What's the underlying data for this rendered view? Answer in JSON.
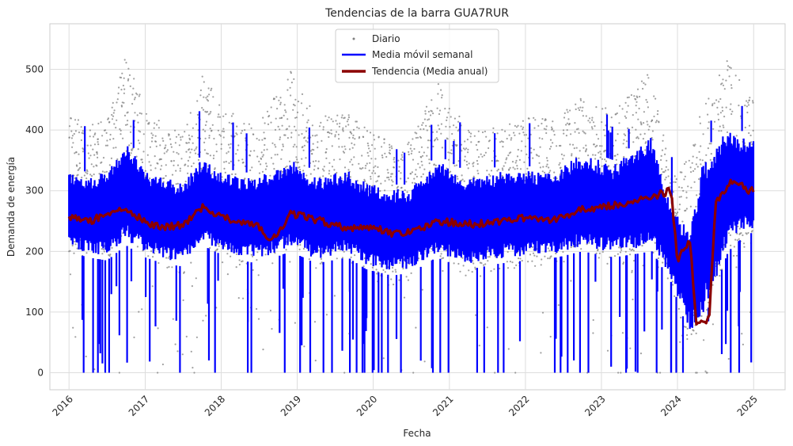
{
  "chart_data": {
    "type": "line",
    "title": "Tendencias de la barra GUA7RUR",
    "xlabel": "Fecha",
    "ylabel": "Demanda de energía",
    "x_ticks": [
      "2016",
      "2017",
      "2018",
      "2019",
      "2020",
      "2021",
      "2022",
      "2023",
      "2024",
      "2025"
    ],
    "y_ticks": [
      0,
      100,
      200,
      300,
      400,
      500
    ],
    "xlim": [
      "2015-10-01",
      "2025-06-01"
    ],
    "ylim": [
      -28,
      575
    ],
    "grid": true,
    "legend_position": "top-center",
    "series": [
      {
        "name": "Diario",
        "style": "points",
        "color": "#808080",
        "points": [
          [
            "2016-01",
            200,
            430
          ],
          [
            "2016-04",
            180,
            410
          ],
          [
            "2016-07",
            170,
            420
          ],
          [
            "2016-10",
            230,
            530
          ],
          [
            "2017-01",
            190,
            430
          ],
          [
            "2017-04",
            170,
            410
          ],
          [
            "2017-07",
            160,
            400
          ],
          [
            "2017-10",
            220,
            500
          ],
          [
            "2018-01",
            180,
            440
          ],
          [
            "2018-04",
            170,
            420
          ],
          [
            "2018-07",
            160,
            410
          ],
          [
            "2018-12",
            220,
            500
          ],
          [
            "2019-04",
            170,
            420
          ],
          [
            "2019-09",
            190,
            430
          ],
          [
            "2019-12",
            150,
            410
          ],
          [
            "2020-04",
            140,
            380
          ],
          [
            "2020-07",
            150,
            380
          ],
          [
            "2020-11",
            190,
            480
          ],
          [
            "2021-04",
            150,
            400
          ],
          [
            "2021-09",
            170,
            410
          ],
          [
            "2022-01",
            170,
            420
          ],
          [
            "2022-06",
            180,
            420
          ],
          [
            "2022-10",
            200,
            460
          ],
          [
            "2023-03",
            170,
            430
          ],
          [
            "2023-09",
            190,
            500
          ],
          [
            "2023-12",
            140,
            320
          ],
          [
            "2024-03",
            40,
            360
          ],
          [
            "2024-05",
            60,
            440
          ],
          [
            "2024-09",
            180,
            520
          ],
          [
            "2024-12",
            210,
            460
          ]
        ]
      },
      {
        "name": "Media móvil semanal",
        "style": "band",
        "color": "#0000ff",
        "points": [
          [
            "2016-01",
            200,
            340
          ],
          [
            "2016-04",
            190,
            330
          ],
          [
            "2016-07",
            185,
            340
          ],
          [
            "2016-10",
            210,
            390
          ],
          [
            "2017-01",
            190,
            340
          ],
          [
            "2017-04",
            180,
            330
          ],
          [
            "2017-07",
            175,
            320
          ],
          [
            "2017-10",
            210,
            360
          ],
          [
            "2018-01",
            195,
            340
          ],
          [
            "2018-04",
            185,
            330
          ],
          [
            "2018-07",
            180,
            330
          ],
          [
            "2018-12",
            200,
            360
          ],
          [
            "2019-04",
            180,
            330
          ],
          [
            "2019-09",
            190,
            340
          ],
          [
            "2019-12",
            170,
            320
          ],
          [
            "2020-04",
            160,
            310
          ],
          [
            "2020-07",
            165,
            310
          ],
          [
            "2020-11",
            190,
            360
          ],
          [
            "2021-04",
            170,
            330
          ],
          [
            "2021-09",
            180,
            340
          ],
          [
            "2022-01",
            185,
            340
          ],
          [
            "2022-06",
            190,
            340
          ],
          [
            "2022-10",
            200,
            370
          ],
          [
            "2023-03",
            190,
            350
          ],
          [
            "2023-09",
            200,
            400
          ],
          [
            "2023-12",
            150,
            280
          ],
          [
            "2024-03",
            60,
            240
          ],
          [
            "2024-05",
            80,
            360
          ],
          [
            "2024-09",
            200,
            420
          ],
          [
            "2024-12",
            230,
            390
          ]
        ]
      },
      {
        "name": "Tendencia (Media anual)",
        "style": "line",
        "color": "#8b0000",
        "points": [
          [
            "2016-01",
            258
          ],
          [
            "2016-04",
            248
          ],
          [
            "2016-07",
            262
          ],
          [
            "2016-10",
            272
          ],
          [
            "2017-01",
            248
          ],
          [
            "2017-04",
            240
          ],
          [
            "2017-07",
            244
          ],
          [
            "2017-10",
            272
          ],
          [
            "2018-01",
            258
          ],
          [
            "2018-04",
            248
          ],
          [
            "2018-07",
            240
          ],
          [
            "2018-09",
            218
          ],
          [
            "2018-12",
            262
          ],
          [
            "2019-04",
            252
          ],
          [
            "2019-09",
            238
          ],
          [
            "2019-12",
            242
          ],
          [
            "2020-04",
            230
          ],
          [
            "2020-07",
            232
          ],
          [
            "2020-11",
            250
          ],
          [
            "2021-04",
            245
          ],
          [
            "2021-09",
            248
          ],
          [
            "2022-01",
            255
          ],
          [
            "2022-06",
            252
          ],
          [
            "2022-10",
            270
          ],
          [
            "2023-03",
            275
          ],
          [
            "2023-09",
            290
          ],
          [
            "2023-12",
            300
          ],
          [
            "2024-01",
            185
          ],
          [
            "2024-03",
            220
          ],
          [
            "2024-04",
            82
          ],
          [
            "2024-06",
            85
          ],
          [
            "2024-07",
            280
          ],
          [
            "2024-10",
            320
          ],
          [
            "2024-12",
            300
          ]
        ]
      }
    ]
  }
}
